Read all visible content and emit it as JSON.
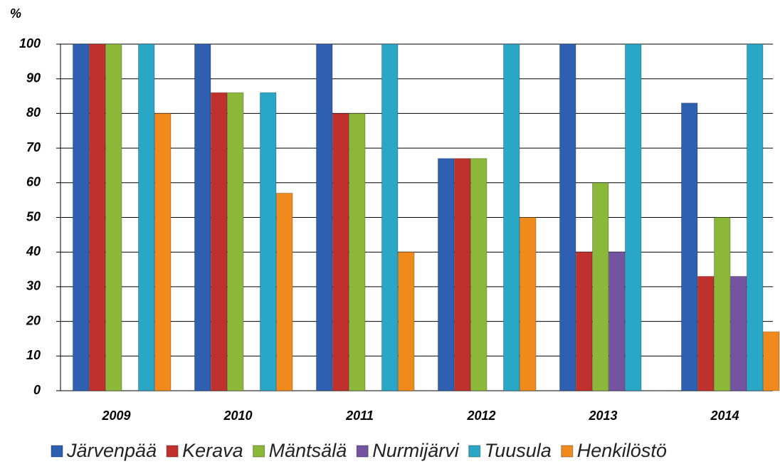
{
  "chart_data": {
    "type": "bar",
    "y_label": "%",
    "categories": [
      "2009",
      "2010",
      "2011",
      "2012",
      "2013",
      "2014"
    ],
    "series": [
      {
        "name": "Järvenpää",
        "color": "#2f5fb0",
        "values": [
          100,
          100,
          100,
          67,
          100,
          83
        ]
      },
      {
        "name": "Kerava",
        "color": "#c0302c",
        "values": [
          100,
          86,
          80,
          67,
          40,
          33
        ]
      },
      {
        "name": "Mäntsälä",
        "color": "#8cb83a",
        "values": [
          100,
          86,
          80,
          67,
          60,
          50
        ]
      },
      {
        "name": "Nurmijärvi",
        "color": "#7453a0",
        "values": [
          null,
          null,
          null,
          null,
          40,
          33
        ]
      },
      {
        "name": "Tuusula",
        "color": "#2aa6c6",
        "values": [
          100,
          86,
          100,
          100,
          100,
          100
        ]
      },
      {
        "name": "Henkilöstö",
        "color": "#f08a1c",
        "values": [
          80,
          57,
          40,
          50,
          null,
          17
        ]
      }
    ],
    "ylim": [
      0,
      100
    ],
    "yticks": [
      0,
      10,
      20,
      30,
      40,
      50,
      60,
      70,
      80,
      90,
      100
    ]
  }
}
